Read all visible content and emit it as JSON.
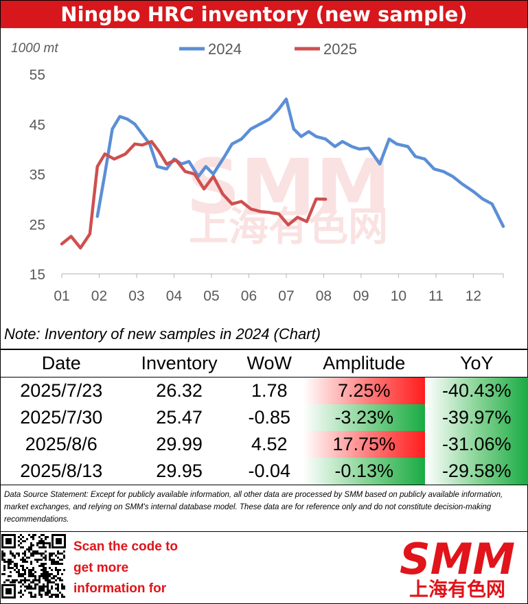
{
  "header": {
    "title": "Ningbo HRC inventory (new sample)"
  },
  "note": "Note: Inventory of new samples in 2024 (Chart)",
  "table": {
    "headers": [
      "Date",
      "Inventory",
      "WoW",
      "Amplitude",
      "YoY"
    ],
    "rows": [
      [
        "2025/7/23",
        "26.32",
        "1.78",
        "7.25%",
        "-40.43%"
      ],
      [
        "2025/7/30",
        "25.47",
        "-0.85",
        "-3.23%",
        "-39.97%"
      ],
      [
        "2025/8/6",
        "29.99",
        "4.52",
        "17.75%",
        "-31.06%"
      ],
      [
        "2025/8/13",
        "29.95",
        "-0.04",
        "-0.13%",
        "-29.58%"
      ]
    ]
  },
  "statement": "Data Source Statement: Except for publicly available information, all other data are processed by SMM based on publicly available information, market exchanges, and relying on SMM's internal database model. These data are for reference only and do not constitute decision-making recommendations.",
  "footer": {
    "scan_lines": [
      "Scan the code to",
      "get more",
      "information for"
    ],
    "logo_text": "SMM",
    "logo_cn": "上海有色网"
  },
  "colors": {
    "brand_red": "#d7171c",
    "series_2024": "#5b8fd6",
    "series_2025": "#cf4f4f",
    "positive": "#ff1d1d",
    "negative": "#1aab44"
  },
  "chart_data": {
    "type": "line",
    "unit_label": "1000 mt",
    "ylim": [
      15,
      55
    ],
    "yticks": [
      15,
      25,
      35,
      45,
      55
    ],
    "xticks": [
      "01",
      "02",
      "03",
      "04",
      "05",
      "06",
      "07",
      "08",
      "09",
      "10",
      "11",
      "12"
    ],
    "xlim": [
      1,
      12.8
    ],
    "grid": false,
    "legend": "top-center",
    "series": [
      {
        "name": "2024",
        "color": "#5b8fd6",
        "x": [
          1.95,
          2.15,
          2.35,
          2.55,
          2.75,
          2.95,
          3.15,
          3.35,
          3.55,
          3.8,
          4.0,
          4.2,
          4.4,
          4.65,
          4.85,
          5.05,
          5.35,
          5.55,
          5.8,
          6.05,
          6.3,
          6.55,
          6.8,
          7.0,
          7.2,
          7.4,
          7.6,
          7.8,
          8.05,
          8.3,
          8.5,
          8.75,
          8.95,
          9.2,
          9.5,
          9.75,
          9.95,
          10.25,
          10.45,
          10.7,
          10.95,
          11.2,
          11.45,
          11.7,
          12.0,
          12.25,
          12.5,
          12.8
        ],
        "y": [
          26.5,
          35,
          44,
          46.5,
          46,
          45,
          43,
          41,
          36.5,
          36,
          38,
          37,
          37.5,
          34.5,
          36.5,
          35,
          38.5,
          41,
          42,
          44,
          45,
          46,
          48,
          50,
          44,
          42.5,
          43.5,
          42.5,
          42,
          40.5,
          41.5,
          40.5,
          40,
          40.2,
          37,
          42,
          41,
          40.5,
          38.5,
          38,
          36,
          35.5,
          34.5,
          33,
          31.5,
          30,
          29,
          24.5
        ]
      },
      {
        "name": "2025",
        "color": "#cf4f4f",
        "x": [
          1.0,
          1.25,
          1.5,
          1.75,
          1.95,
          2.15,
          2.4,
          2.7,
          2.95,
          3.15,
          3.4,
          3.6,
          3.8,
          4.05,
          4.3,
          4.55,
          4.8,
          5.05,
          5.3,
          5.55,
          5.8,
          6.05,
          6.3,
          6.55,
          6.8,
          7.05,
          7.3,
          7.55,
          7.8,
          8.05
        ],
        "y": [
          21,
          22.5,
          20.2,
          23,
          36.5,
          39,
          38,
          39,
          41,
          40.8,
          41.5,
          39.5,
          37,
          37.8,
          35.5,
          35,
          32,
          34.5,
          31,
          29,
          29.5,
          28,
          27.5,
          27.3,
          27,
          24.8,
          26.32,
          25.47,
          29.99,
          29.95
        ]
      }
    ]
  }
}
